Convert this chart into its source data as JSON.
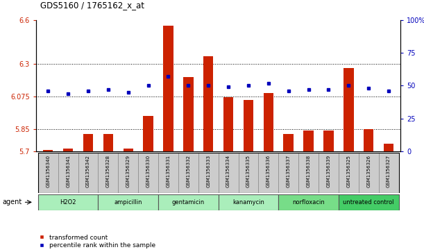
{
  "title": "GDS5160 / 1765162_x_at",
  "samples": [
    "GSM1356340",
    "GSM1356341",
    "GSM1356342",
    "GSM1356328",
    "GSM1356329",
    "GSM1356330",
    "GSM1356331",
    "GSM1356332",
    "GSM1356333",
    "GSM1356334",
    "GSM1356335",
    "GSM1356336",
    "GSM1356337",
    "GSM1356338",
    "GSM1356339",
    "GSM1356325",
    "GSM1356326",
    "GSM1356327"
  ],
  "transformed_count": [
    5.71,
    5.72,
    5.82,
    5.82,
    5.72,
    5.94,
    6.56,
    6.21,
    6.35,
    6.07,
    6.05,
    6.1,
    5.82,
    5.84,
    5.84,
    6.27,
    5.85,
    5.75
  ],
  "percentile_rank": [
    46,
    44,
    46,
    47,
    45,
    50,
    57,
    50,
    50,
    49,
    50,
    52,
    46,
    47,
    47,
    50,
    48,
    46
  ],
  "groups": [
    {
      "label": "H2O2",
      "start": 0,
      "end": 2,
      "color": "#aaeebb"
    },
    {
      "label": "ampicillin",
      "start": 3,
      "end": 5,
      "color": "#aaeebb"
    },
    {
      "label": "gentamicin",
      "start": 6,
      "end": 8,
      "color": "#aaeebb"
    },
    {
      "label": "kanamycin",
      "start": 9,
      "end": 11,
      "color": "#aaeebb"
    },
    {
      "label": "norfloxacin",
      "start": 12,
      "end": 14,
      "color": "#77dd88"
    },
    {
      "label": "untreated control",
      "start": 15,
      "end": 17,
      "color": "#44cc66"
    }
  ],
  "ylim_left": [
    5.7,
    6.6
  ],
  "ylim_right": [
    0,
    100
  ],
  "yticks_left": [
    5.7,
    5.85,
    6.075,
    6.3,
    6.6
  ],
  "yticks_right": [
    0,
    25,
    50,
    75,
    100
  ],
  "bar_color": "#cc2200",
  "dot_color": "#0000bb",
  "bar_width": 0.5,
  "background_color": "#ffffff",
  "plot_bg_color": "#ffffff",
  "left_tick_color": "#cc2200",
  "right_tick_color": "#0000bb",
  "sample_bg_color": "#cccccc",
  "agent_label": "agent",
  "legend_bar": "transformed count",
  "legend_dot": "percentile rank within the sample"
}
